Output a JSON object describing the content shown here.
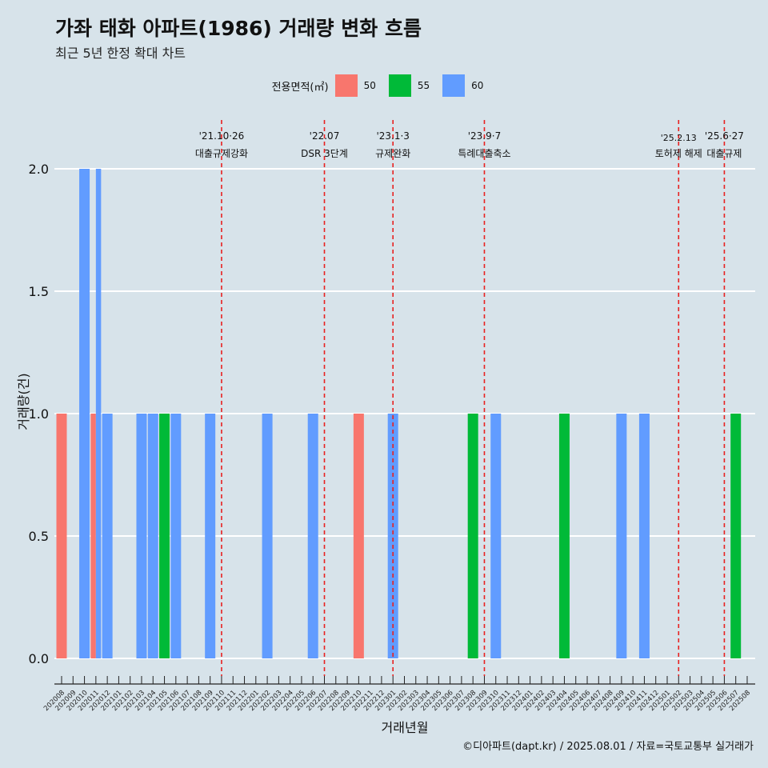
{
  "title": "가좌 태화 아파트(1986) 거래량 변화 흐름",
  "subtitle": "최근 5년 한정 확대 차트",
  "caption": "©디아파트(dapt.kr) / 2025.08.01 / 자료=국토교통부 실거래가",
  "legend": {
    "title": "전용면적(㎡)",
    "items": [
      {
        "label": "50",
        "color": "#F8766D"
      },
      {
        "label": "55",
        "color": "#00BA38"
      },
      {
        "label": "60",
        "color": "#619CFF"
      }
    ]
  },
  "chart_data": {
    "type": "bar",
    "xlabel": "거래년월",
    "ylabel": "거래량(건)",
    "ylim": [
      0,
      2
    ],
    "yticks": [
      "0.0",
      "0.5",
      "1.0",
      "1.5",
      "2.0"
    ],
    "grid": true,
    "legend_position": "top",
    "categories": [
      "202008",
      "202009",
      "202010",
      "202011",
      "202012",
      "202101",
      "202102",
      "202103",
      "202104",
      "202105",
      "202106",
      "202107",
      "202108",
      "202109",
      "202110",
      "202111",
      "202112",
      "202201",
      "202202",
      "202203",
      "202204",
      "202205",
      "202206",
      "202207",
      "202208",
      "202209",
      "202210",
      "202211",
      "202212",
      "202301",
      "202302",
      "202303",
      "202304",
      "202305",
      "202306",
      "202307",
      "202308",
      "202309",
      "202310",
      "202311",
      "202312",
      "202401",
      "202402",
      "202403",
      "202404",
      "202405",
      "202406",
      "202407",
      "202408",
      "202409",
      "202410",
      "202411",
      "202412",
      "202501",
      "202502",
      "202503",
      "202504",
      "202505",
      "202506",
      "202507",
      "202508"
    ],
    "series": [
      {
        "name": "50",
        "color": "#F8766D",
        "points": [
          {
            "x": "202008",
            "y": 1
          },
          {
            "x": "202011",
            "y": 1
          },
          {
            "x": "202210",
            "y": 1
          }
        ]
      },
      {
        "name": "55",
        "color": "#00BA38",
        "points": [
          {
            "x": "202105",
            "y": 1
          },
          {
            "x": "202308",
            "y": 1
          },
          {
            "x": "202404",
            "y": 1
          },
          {
            "x": "202507",
            "y": 1
          }
        ]
      },
      {
        "name": "60",
        "color": "#619CFF",
        "points": [
          {
            "x": "202010",
            "y": 2
          },
          {
            "x": "202011",
            "y": 2
          },
          {
            "x": "202012",
            "y": 1
          },
          {
            "x": "202103",
            "y": 1
          },
          {
            "x": "202104",
            "y": 1
          },
          {
            "x": "202106",
            "y": 1
          },
          {
            "x": "202109",
            "y": 1
          },
          {
            "x": "202202",
            "y": 1
          },
          {
            "x": "202206",
            "y": 1
          },
          {
            "x": "202301",
            "y": 1
          },
          {
            "x": "202310",
            "y": 1
          },
          {
            "x": "202409",
            "y": 1
          },
          {
            "x": "202411",
            "y": 1
          }
        ]
      }
    ],
    "annotations": [
      {
        "x": "202110",
        "date": "'21.10·26",
        "text": "대출규제강화"
      },
      {
        "x": "202207",
        "date": "'22.07",
        "text": "DSR 3단계"
      },
      {
        "x": "202301",
        "date": "'23.1·3",
        "text": "규제완화"
      },
      {
        "x": "202309",
        "date": "'23.9·7",
        "text": "특례대출축소"
      },
      {
        "x": "202502",
        "date": "'25.2.13",
        "text": "토허제 해제"
      },
      {
        "x": "202506",
        "date": "'25.6·27",
        "text": "대출규제"
      }
    ]
  }
}
